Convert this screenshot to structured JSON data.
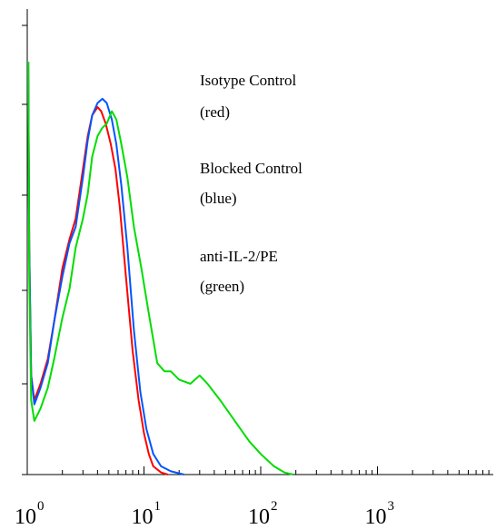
{
  "chart_data": {
    "type": "line",
    "title": "",
    "xlabel": "",
    "ylabel": "",
    "x_scale": "log",
    "xlim": [
      1,
      10000
    ],
    "ylim": [
      0,
      100
    ],
    "grid": false,
    "x_ticks": [
      {
        "base": "10",
        "exp": "0",
        "value": 1
      },
      {
        "base": "10",
        "exp": "1",
        "value": 10
      },
      {
        "base": "10",
        "exp": "2",
        "value": 100
      },
      {
        "base": "10",
        "exp": "3",
        "value": 1000
      }
    ],
    "annotations": [
      {
        "text": "Isotype Control",
        "x": 220,
        "y": 18,
        "xunit": "log"
      },
      {
        "text": "(red)"
      },
      {
        "text": "Blocked Control"
      },
      {
        "text": "(blue)"
      },
      {
        "text": "anti-IL-2/PE"
      },
      {
        "text": "(green)"
      }
    ],
    "series": [
      {
        "color": "#ff0000",
        "points": [
          [
            1.02,
            100
          ],
          [
            1.04,
            55
          ],
          [
            1.08,
            24
          ],
          [
            1.15,
            18
          ],
          [
            1.3,
            22
          ],
          [
            1.5,
            28
          ],
          [
            1.7,
            37
          ],
          [
            2.0,
            50
          ],
          [
            2.3,
            57
          ],
          [
            2.6,
            62
          ],
          [
            3.0,
            74
          ],
          [
            3.3,
            82
          ],
          [
            3.6,
            87
          ],
          [
            4.0,
            89
          ],
          [
            4.3,
            88
          ],
          [
            4.7,
            85
          ],
          [
            5.2,
            80
          ],
          [
            5.7,
            74
          ],
          [
            6.2,
            65
          ],
          [
            7.0,
            48
          ],
          [
            8.0,
            30
          ],
          [
            9.0,
            18
          ],
          [
            10.0,
            10
          ],
          [
            11.0,
            5
          ],
          [
            12.0,
            2
          ],
          [
            14.0,
            0.5
          ],
          [
            16.0,
            0
          ]
        ]
      },
      {
        "color": "#0055ff",
        "points": [
          [
            1.02,
            100
          ],
          [
            1.04,
            55
          ],
          [
            1.08,
            24
          ],
          [
            1.15,
            17
          ],
          [
            1.3,
            21
          ],
          [
            1.5,
            27
          ],
          [
            1.7,
            37
          ],
          [
            2.0,
            48
          ],
          [
            2.3,
            56
          ],
          [
            2.6,
            60
          ],
          [
            3.0,
            72
          ],
          [
            3.3,
            81
          ],
          [
            3.6,
            87
          ],
          [
            4.0,
            90
          ],
          [
            4.4,
            91
          ],
          [
            4.8,
            90
          ],
          [
            5.3,
            86
          ],
          [
            5.8,
            80
          ],
          [
            6.4,
            70
          ],
          [
            7.2,
            55
          ],
          [
            8.2,
            35
          ],
          [
            9.3,
            20
          ],
          [
            10.5,
            11
          ],
          [
            12.0,
            5
          ],
          [
            14.0,
            2
          ],
          [
            17.0,
            0.8
          ],
          [
            22.0,
            0
          ]
        ]
      },
      {
        "color": "#00dd00",
        "points": [
          [
            1.02,
            100
          ],
          [
            1.04,
            48
          ],
          [
            1.08,
            18
          ],
          [
            1.15,
            13
          ],
          [
            1.3,
            16
          ],
          [
            1.5,
            21
          ],
          [
            1.7,
            28
          ],
          [
            2.0,
            38
          ],
          [
            2.3,
            45
          ],
          [
            2.6,
            55
          ],
          [
            3.0,
            62
          ],
          [
            3.3,
            68
          ],
          [
            3.6,
            77
          ],
          [
            4.0,
            82
          ],
          [
            4.4,
            84
          ],
          [
            4.8,
            85
          ],
          [
            5.3,
            88
          ],
          [
            5.8,
            86
          ],
          [
            6.4,
            80
          ],
          [
            7.2,
            72
          ],
          [
            8.2,
            60
          ],
          [
            9.5,
            50
          ],
          [
            11.0,
            39
          ],
          [
            13.0,
            27
          ],
          [
            15.0,
            25
          ],
          [
            17.0,
            25
          ],
          [
            20.0,
            23
          ],
          [
            25.0,
            22
          ],
          [
            30.0,
            24
          ],
          [
            35.0,
            22
          ],
          [
            45.0,
            18
          ],
          [
            60.0,
            13
          ],
          [
            80.0,
            8
          ],
          [
            100.0,
            5
          ],
          [
            130.0,
            2
          ],
          [
            160.0,
            0.5
          ],
          [
            190.0,
            0
          ]
        ]
      }
    ]
  }
}
